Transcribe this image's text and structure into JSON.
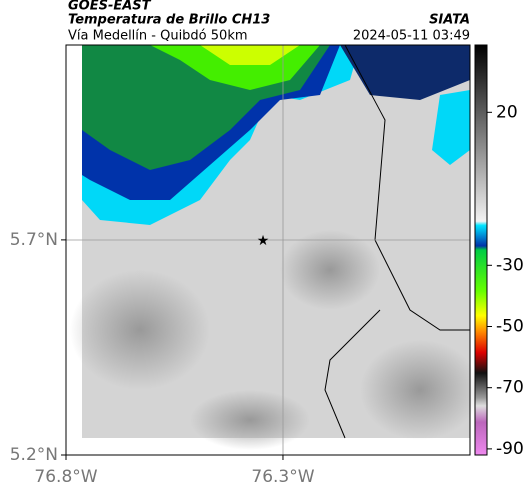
{
  "header": {
    "title": "GOES-EAST",
    "subtitle": "Temperatura de Brillo CH13",
    "route": "Vía Medellín - Quibdó 50km",
    "source": "SIATA",
    "timestamp": "2024-05-11 03:49"
  },
  "map": {
    "xlim": [
      -76.8,
      -75.869
    ],
    "ylim": [
      5.2,
      6.153
    ],
    "xticks": [
      {
        "value": -76.8,
        "label": "76.8°W"
      },
      {
        "value": -76.3,
        "label": "76.3°W"
      }
    ],
    "yticks": [
      {
        "value": 5.7,
        "label": "5.7°N"
      },
      {
        "value": 5.2,
        "label": "5.2°N"
      }
    ]
  },
  "colorbar": {
    "lim": [
      -92,
      42
    ],
    "ticks": [
      20,
      -30,
      -50,
      -70,
      -90
    ]
  }
}
